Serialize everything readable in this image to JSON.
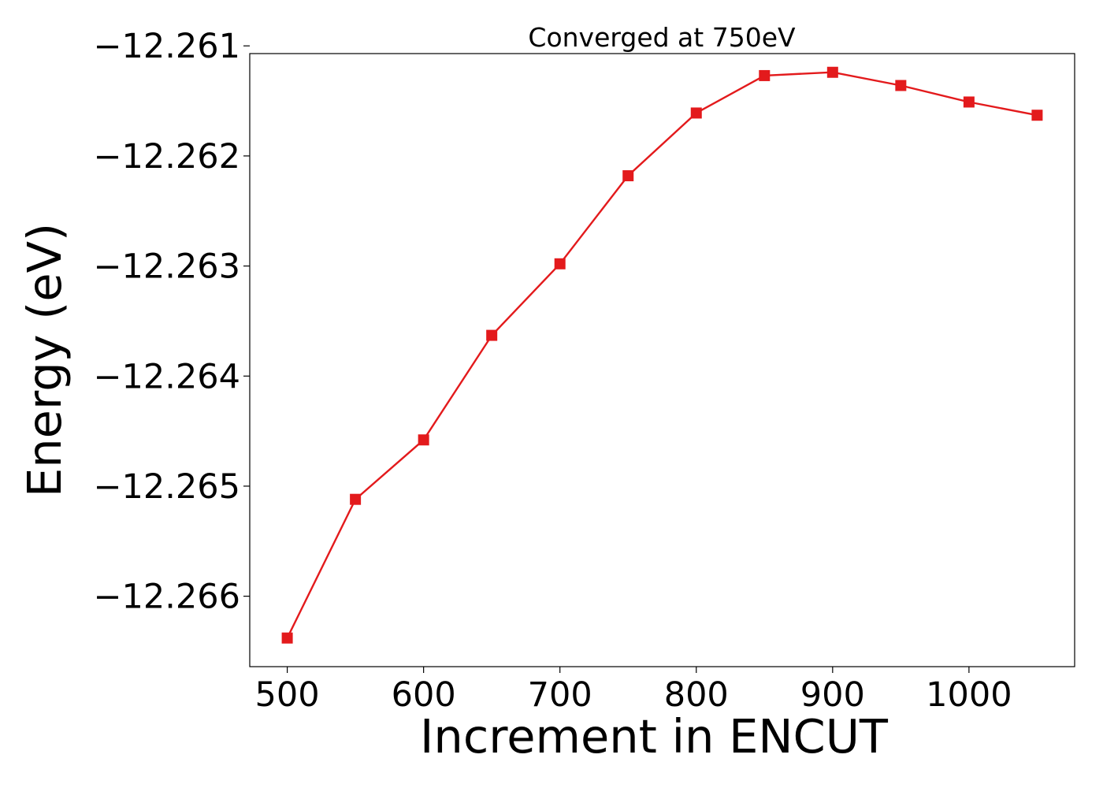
{
  "chart_data": {
    "type": "line",
    "title": "Converged at 750eV",
    "xlabel": "Increment in ENCUT",
    "ylabel": "Energy (eV)",
    "x": [
      500,
      550,
      600,
      650,
      700,
      750,
      800,
      850,
      900,
      950,
      1000,
      1050
    ],
    "series": [
      {
        "values": [
          -12.26638,
          -12.26512,
          -12.26458,
          -12.26363,
          -12.26298,
          -12.26218,
          -12.26161,
          -12.26127,
          -12.26124,
          -12.26136,
          -12.26151,
          -12.26163
        ],
        "color": "#e31a1c",
        "marker": "square"
      }
    ],
    "xlim": [
      472.5,
      1077.5
    ],
    "ylim": [
      -12.26664,
      -12.26107
    ],
    "xticks": [
      500,
      600,
      700,
      800,
      900,
      1000
    ],
    "xtick_labels": [
      "500",
      "600",
      "700",
      "800",
      "900",
      "1000"
    ],
    "yticks": [
      -12.261,
      -12.262,
      -12.263,
      -12.264,
      -12.265,
      -12.266
    ],
    "ytick_labels": [
      "−12.261",
      "−12.262",
      "−12.263",
      "−12.264",
      "−12.265",
      "−12.266"
    ],
    "grid": false,
    "legend": "none"
  }
}
